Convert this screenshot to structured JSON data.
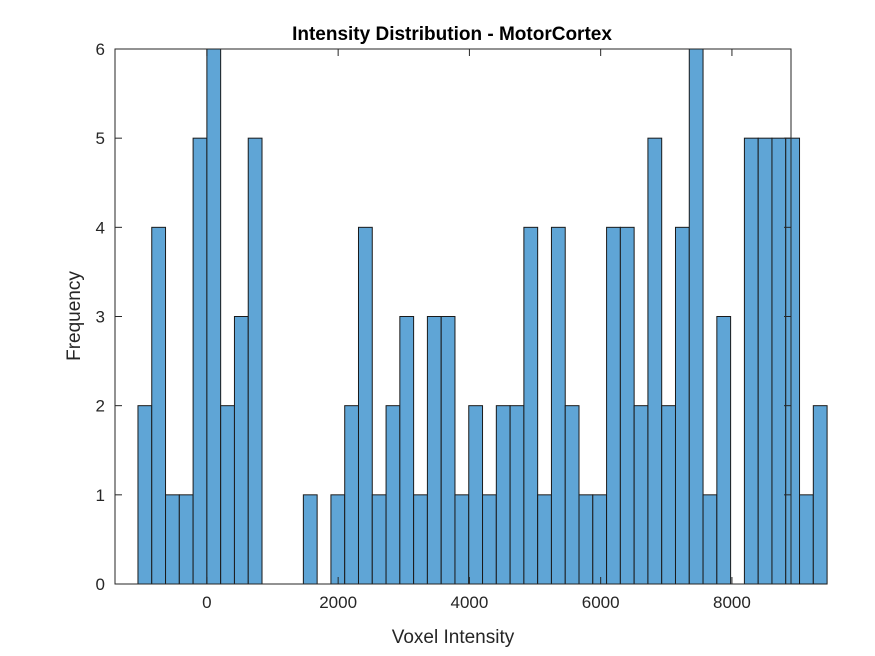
{
  "chart_data": {
    "type": "bar",
    "subtype": "histogram",
    "title": "Intensity Distribution - MotorCortex",
    "xlabel": "Voxel Intensity",
    "ylabel": "Frequency",
    "xlim": [
      -1400,
      8900
    ],
    "ylim": [
      0,
      6
    ],
    "xticks": [
      0,
      2000,
      4000,
      6000,
      8000
    ],
    "yticks": [
      0,
      1,
      2,
      3,
      4,
      5,
      6
    ],
    "grid": false,
    "legend": "none",
    "bin_start": -1050,
    "bin_width": 210,
    "values": [
      2,
      4,
      1,
      1,
      5,
      6,
      2,
      3,
      5,
      0,
      0,
      0,
      1,
      0,
      1,
      2,
      4,
      1,
      2,
      3,
      1,
      3,
      3,
      1,
      2,
      1,
      2,
      2,
      4,
      1,
      4,
      2,
      1,
      1,
      4,
      4,
      2,
      5,
      2,
      4,
      6,
      1,
      3,
      0,
      5,
      5,
      5,
      5,
      1,
      2
    ],
    "colors": {
      "bar_fill": "#5fa5d6",
      "bar_edge": "#1a1a1a",
      "axis": "#262626"
    }
  }
}
